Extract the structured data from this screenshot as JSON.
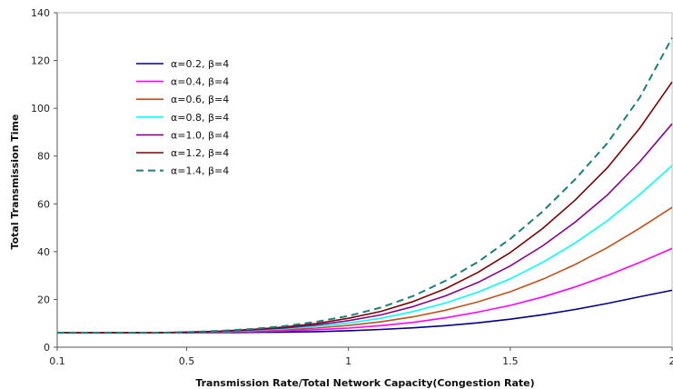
{
  "chart_data": {
    "type": "line",
    "xlabel": "Transmission Rate/Total Network Capacity(Congestion Rate)",
    "ylabel": "Total Transmission Time",
    "xlim": [
      0.1,
      2
    ],
    "ylim": [
      0,
      140
    ],
    "xticks": [
      {
        "value": 0.1,
        "label": "0.1"
      },
      {
        "value": 0.5,
        "label": "0.5"
      },
      {
        "value": 1,
        "label": "1"
      },
      {
        "value": 1.5,
        "label": "1.5"
      },
      {
        "value": 2,
        "label": "2"
      }
    ],
    "yticks": [
      {
        "value": 0,
        "label": "0"
      },
      {
        "value": 20,
        "label": "20"
      },
      {
        "value": 40,
        "label": "40"
      },
      {
        "value": 60,
        "label": "60"
      },
      {
        "value": 80,
        "label": "80"
      },
      {
        "value": 100,
        "label": "100"
      },
      {
        "value": 120,
        "label": "120"
      },
      {
        "value": 140,
        "label": "140"
      }
    ],
    "grid": false,
    "legend_position": "upper-left",
    "x": [
      0.1,
      0.2,
      0.3,
      0.4,
      0.5,
      0.6,
      0.7,
      0.8,
      0.9,
      1.0,
      1.1,
      1.2,
      1.3,
      1.4,
      1.5,
      1.6,
      1.7,
      1.8,
      1.9,
      2.0
    ],
    "series": [
      {
        "name": "α=0.2, β=4",
        "color": "#00008B",
        "dash": false,
        "values": [
          6.0,
          6.0,
          6.0,
          6.0,
          6.0,
          6.1,
          6.2,
          6.3,
          6.5,
          6.9,
          7.4,
          8.1,
          9.0,
          10.2,
          11.7,
          13.6,
          15.8,
          18.3,
          21.1,
          23.8
        ]
      },
      {
        "name": "α=0.4, β=4",
        "color": "#FF00FF",
        "dash": false,
        "values": [
          6.0,
          6.0,
          6.0,
          6.0,
          6.1,
          6.3,
          6.5,
          6.8,
          7.3,
          8.0,
          9.0,
          10.4,
          12.3,
          14.7,
          17.5,
          21.0,
          25.2,
          30.0,
          35.5,
          41.3
        ]
      },
      {
        "name": "α=0.6, β=4",
        "color": "#C05018",
        "dash": false,
        "values": [
          6.0,
          6.0,
          6.0,
          6.0,
          6.2,
          6.4,
          6.8,
          7.3,
          8.0,
          9.1,
          10.6,
          12.7,
          15.5,
          19.0,
          23.2,
          28.4,
          34.6,
          41.7,
          49.8,
          58.5
        ]
      },
      {
        "name": "α=0.8, β=4",
        "color": "#00FFFF",
        "dash": false,
        "values": [
          6.0,
          6.0,
          6.0,
          6.0,
          6.2,
          6.5,
          7.0,
          7.7,
          8.7,
          10.1,
          12.1,
          14.9,
          18.5,
          23.0,
          28.6,
          35.5,
          43.6,
          52.9,
          63.9,
          76.0
        ]
      },
      {
        "name": "α=1.0, β=4",
        "color": "#8B008B",
        "dash": false,
        "values": [
          6.0,
          6.0,
          6.0,
          6.0,
          6.3,
          6.6,
          7.2,
          8.0,
          9.3,
          11.1,
          13.5,
          17.0,
          21.5,
          27.1,
          34.0,
          42.4,
          52.3,
          63.7,
          77.6,
          93.5
        ]
      },
      {
        "name": "α=1.2, β=4",
        "color": "#800000",
        "dash": false,
        "values": [
          6.0,
          6.0,
          6.0,
          6.0,
          6.3,
          6.7,
          7.4,
          8.4,
          9.9,
          12.1,
          15.0,
          19.1,
          24.5,
          31.3,
          39.6,
          49.7,
          61.5,
          75.1,
          91.7,
          111.0
        ]
      },
      {
        "name": "α=1.4, β=4",
        "color": "#1A7F7F",
        "dash": true,
        "values": [
          6.0,
          6.0,
          6.0,
          6.0,
          6.3,
          6.8,
          7.6,
          8.8,
          10.6,
          13.1,
          16.6,
          21.4,
          27.8,
          35.7,
          45.3,
          56.8,
          70.2,
          85.4,
          104.5,
          129.5
        ]
      }
    ]
  }
}
